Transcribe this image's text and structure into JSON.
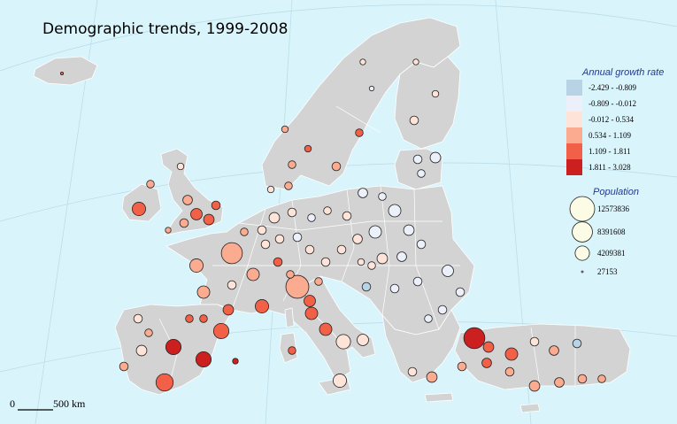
{
  "title": "Demographic trends, 1999-2008",
  "legend": {
    "growth_heading": "Annual growth rate",
    "growth_classes": [
      {
        "label": "-2.429 - -0.809",
        "color": "#b8d3e6"
      },
      {
        "label": "-0.809 - -0.012",
        "color": "#ecf0fb"
      },
      {
        "label": "-0.012 - 0.534",
        "color": "#fde3d8"
      },
      {
        "label": "0.534 - 1.109",
        "color": "#fbab8f"
      },
      {
        "label": "1.109 - 1.811",
        "color": "#f26047"
      },
      {
        "label": "1.811 - 3.028",
        "color": "#cc1f1f"
      }
    ],
    "population_heading": "Population",
    "population_classes": [
      {
        "label": "12573836",
        "value": 12573836
      },
      {
        "label": "8391608",
        "value": 8391608
      },
      {
        "label": "4209381",
        "value": 4209381
      },
      {
        "label": "27153",
        "value": 27153
      }
    ],
    "circle_fill": "#fbfbe6"
  },
  "scale_bar": {
    "zero": "0",
    "distance": "500 km"
  },
  "colors": {
    "sea": "#d9f4fb",
    "land": "#d3d3d3",
    "borders": "#ffffff"
  },
  "max_population": 12573836,
  "regions_sample": [
    {
      "p": 12573836,
      "c": 5
    },
    {
      "p": 11000000,
      "c": 4
    },
    {
      "p": 9000000,
      "c": 3
    },
    {
      "p": 6500000,
      "c": 3
    },
    {
      "p": 5800000,
      "c": 5
    },
    {
      "p": 5000000,
      "c": 3
    },
    {
      "p": 4500000,
      "c": 2
    },
    {
      "p": 4200000,
      "c": 3
    },
    {
      "p": 3500000,
      "c": 5
    },
    {
      "p": 3000000,
      "c": 1
    },
    {
      "p": 2500000,
      "c": 2
    },
    {
      "p": 2000000,
      "c": 0
    }
  ]
}
